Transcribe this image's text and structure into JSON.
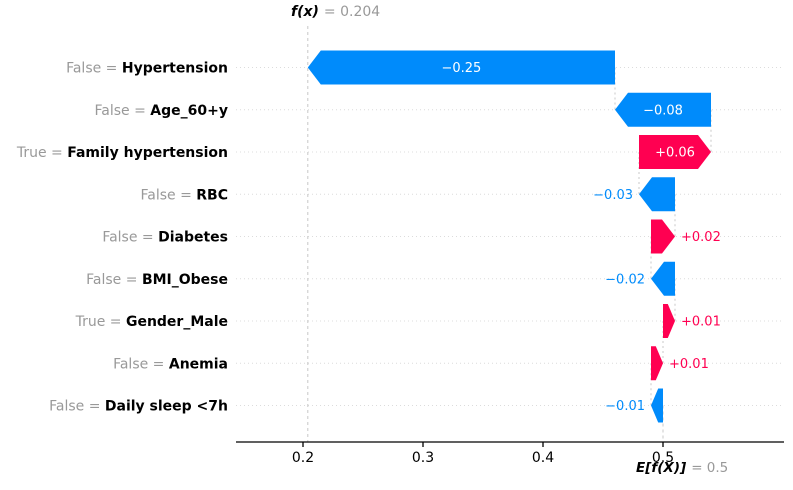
{
  "header": {
    "symbol": "f(x)",
    "equals": "=",
    "value": "0.204"
  },
  "footer": {
    "symbol": "E[f(X)]",
    "equals": "=",
    "value": "0.5"
  },
  "chart_data": {
    "type": "bar",
    "subtype": "shap-waterfall",
    "title": "f(x) = 0.204",
    "xlabel": "",
    "ylabel": "",
    "base_value": 0.5,
    "fx_value": 0.204,
    "base_value_label": "E[f(X)] = 0.5",
    "fx_value_label": "f(x) = 0.204",
    "equals_sign": "=",
    "x_ticks": [
      "0.2",
      "0.3",
      "0.4",
      "0.5"
    ],
    "x_tick_values": [
      0.2,
      0.3,
      0.4,
      0.5
    ],
    "xlim": [
      0.144,
      0.601
    ],
    "grid": "horizontal-dotted",
    "legend": "none",
    "colors": {
      "positive": "#ff0051",
      "negative": "#008bfb",
      "condition_gray": "#999999",
      "annotation_gray": "#999999",
      "gridline": "#dcdcdc",
      "connector": "#c8c8c8",
      "axis": "#000000",
      "bar_text": "#ffffff",
      "feature_name": "#000000"
    },
    "features": [
      {
        "condition": "False",
        "name": "Hypertension",
        "value": -0.25,
        "label": "−0.25"
      },
      {
        "condition": "False",
        "name": "Age_60+y",
        "value": -0.08,
        "label": "−0.08"
      },
      {
        "condition": "True",
        "name": "Family hypertension",
        "value": 0.06,
        "label": "+0.06"
      },
      {
        "condition": "False",
        "name": "RBC",
        "value": -0.03,
        "label": "−0.03"
      },
      {
        "condition": "False",
        "name": "Diabetes",
        "value": 0.02,
        "label": "+0.02"
      },
      {
        "condition": "False",
        "name": "BMI_Obese",
        "value": -0.02,
        "label": "−0.02"
      },
      {
        "condition": "True",
        "name": "Gender_Male",
        "value": 0.01,
        "label": "+0.01"
      },
      {
        "condition": "False",
        "name": "Anemia",
        "value": 0.01,
        "label": "+0.01"
      },
      {
        "condition": "False",
        "name": "Daily sleep <7h",
        "value": -0.01,
        "label": "−0.01"
      }
    ]
  }
}
